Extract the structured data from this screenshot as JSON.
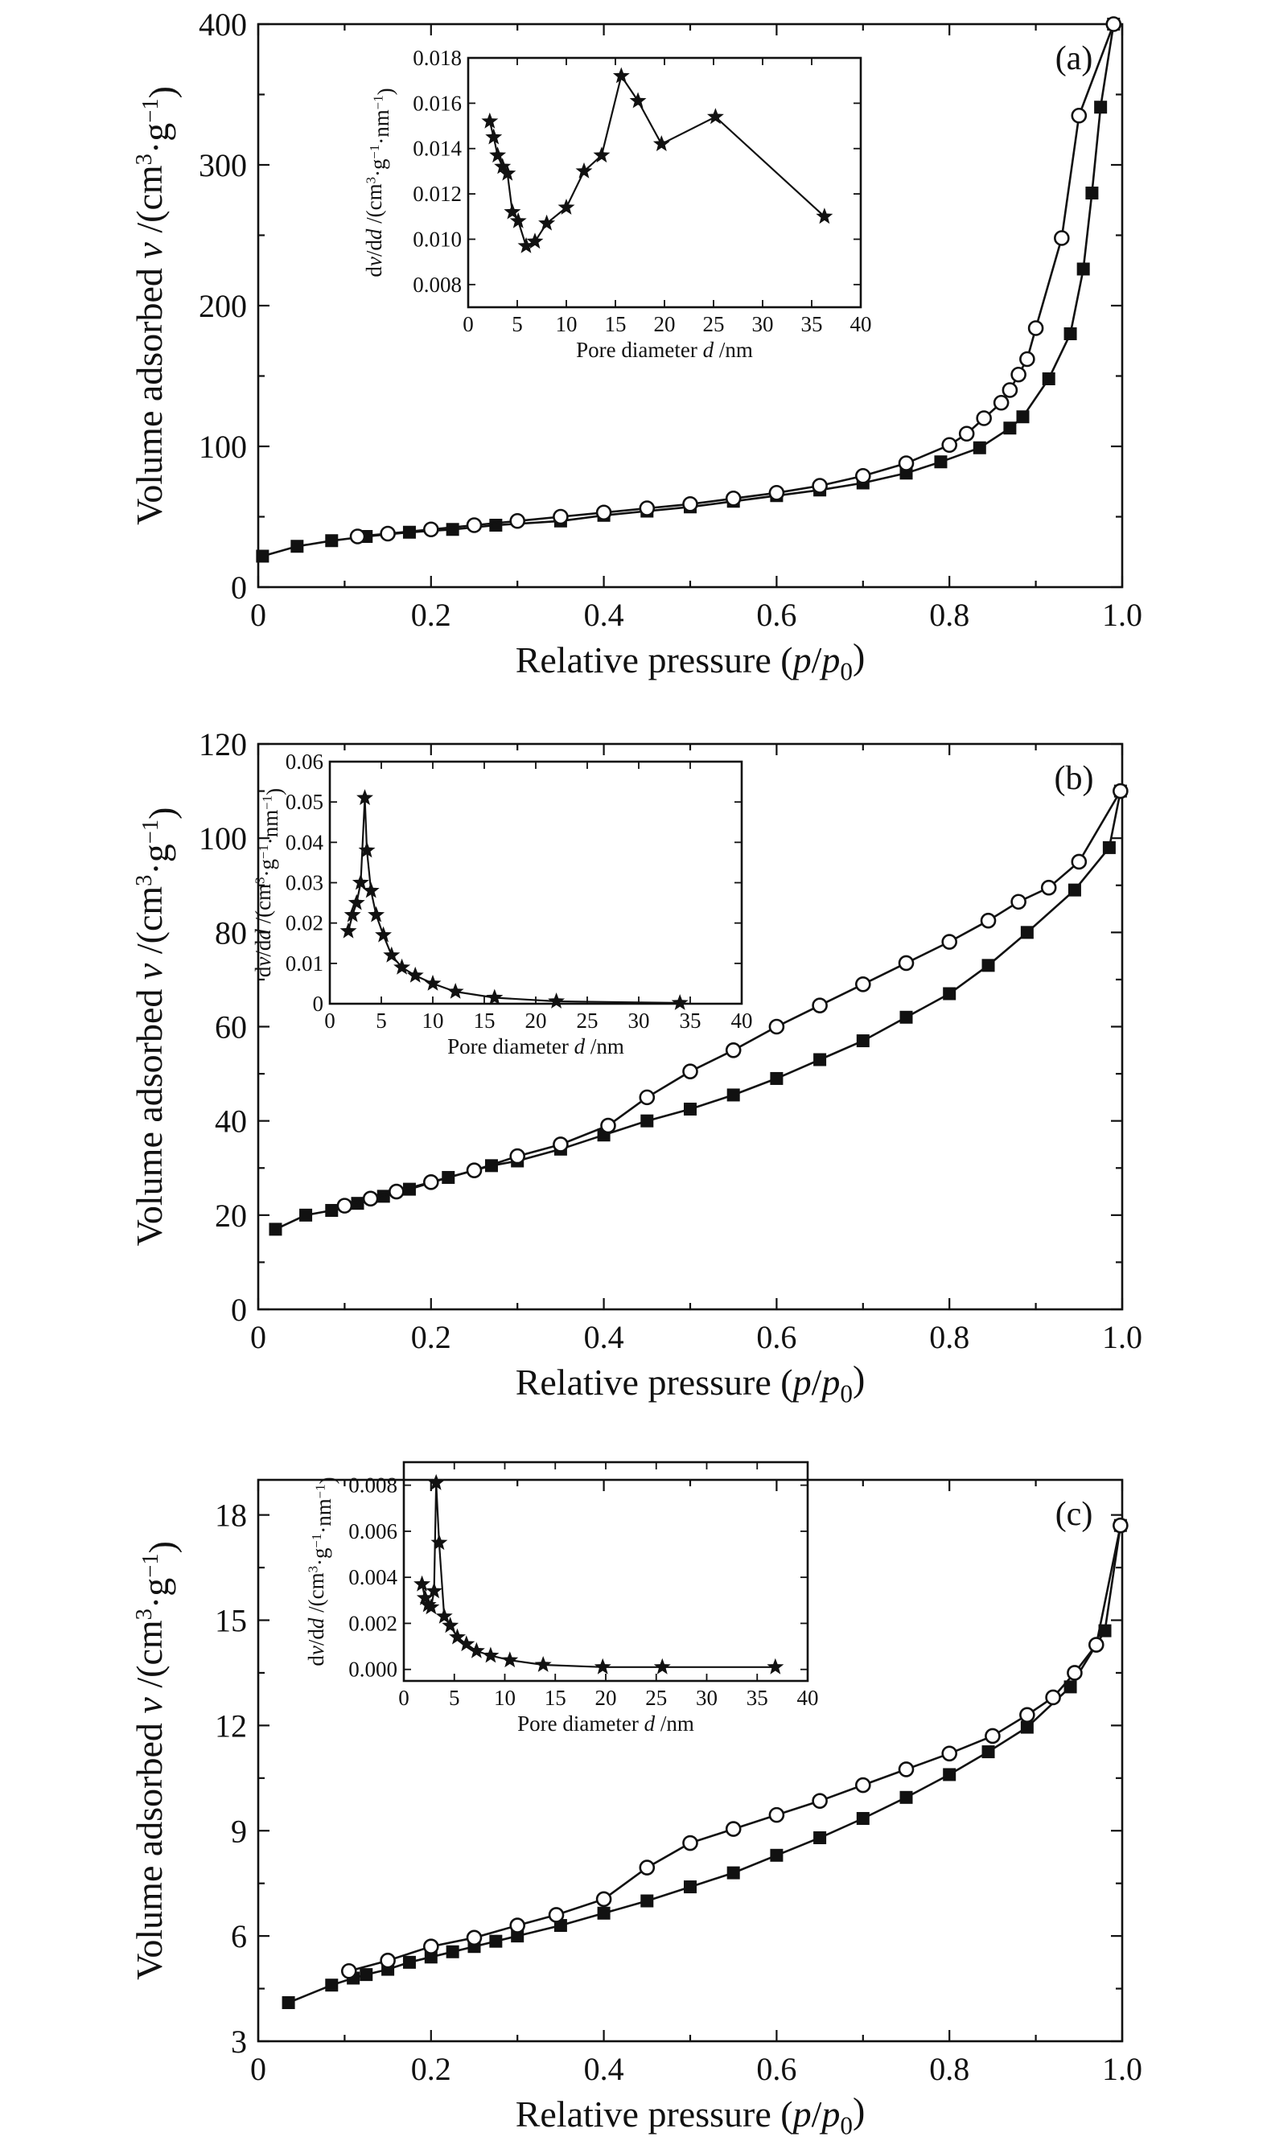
{
  "chart_data": [
    {
      "type": "line",
      "panel_label": "(a)",
      "xlabel": "Relative pressure (p/p0)",
      "ylabel": "Volume adsorbed   v /(cm³·g⁻¹)",
      "xlim": [
        0,
        1.0
      ],
      "ylim": [
        0,
        400
      ],
      "xticks": [
        "0",
        "0.2",
        "0.4",
        "0.6",
        "0.8",
        "1.0"
      ],
      "yticks": [
        "0",
        "100",
        "200",
        "300",
        "400"
      ],
      "series": [
        {
          "marker": "square-filled",
          "x": [
            0.005,
            0.045,
            0.085,
            0.125,
            0.175,
            0.225,
            0.275,
            0.35,
            0.4,
            0.45,
            0.5,
            0.55,
            0.6,
            0.65,
            0.7,
            0.75,
            0.79,
            0.835,
            0.87,
            0.885,
            0.915,
            0.94,
            0.955,
            0.965,
            0.975,
            0.99
          ],
          "y": [
            22,
            29,
            33,
            36,
            39,
            41,
            44,
            47,
            51,
            54,
            57,
            61,
            65,
            69,
            74,
            81,
            89,
            99,
            113,
            121,
            148,
            180,
            226,
            280,
            341,
            400
          ]
        },
        {
          "marker": "circle-open",
          "x": [
            0.115,
            0.15,
            0.2,
            0.25,
            0.3,
            0.35,
            0.4,
            0.45,
            0.5,
            0.55,
            0.6,
            0.65,
            0.7,
            0.75,
            0.8,
            0.82,
            0.84,
            0.86,
            0.87,
            0.88,
            0.89,
            0.9,
            0.93,
            0.95,
            0.99
          ],
          "y": [
            36,
            38,
            41,
            44,
            47,
            50,
            53,
            56,
            59,
            63,
            67,
            72,
            79,
            88,
            101,
            109,
            120,
            131,
            140,
            151,
            162,
            184,
            248,
            335,
            400
          ]
        }
      ],
      "inset": {
        "type": "line",
        "marker": "star",
        "xlabel": "Pore diameter   d /nm",
        "ylabel": "dv/dd /(cm³·g⁻¹·nm⁻¹)",
        "xlim": [
          0,
          40
        ],
        "ylim": [
          0.007,
          0.018
        ],
        "xticks": [
          "0",
          "5",
          "10",
          "15",
          "20",
          "25",
          "30",
          "35",
          "40"
        ],
        "yticks": [
          "0.008",
          "0.010",
          "0.012",
          "0.014",
          "0.016",
          "0.018"
        ],
        "x": [
          2.2,
          2.6,
          3.0,
          3.5,
          4.0,
          4.5,
          5.1,
          5.9,
          6.8,
          8.0,
          10.0,
          11.8,
          13.6,
          15.6,
          17.3,
          19.7,
          25.2,
          36.3
        ],
        "y": [
          0.0152,
          0.0145,
          0.0137,
          0.0132,
          0.0129,
          0.0112,
          0.0108,
          0.0097,
          0.0099,
          0.0107,
          0.0114,
          0.013,
          0.0137,
          0.0172,
          0.0161,
          0.0142,
          0.0154,
          0.011
        ]
      }
    },
    {
      "type": "line",
      "panel_label": "(b)",
      "xlabel": "Relative pressure (p/p0)",
      "ylabel": "Volume adsorbed   v /(cm³·g⁻¹)",
      "xlim": [
        0,
        1.0
      ],
      "ylim": [
        0,
        120
      ],
      "xticks": [
        "0",
        "0.2",
        "0.4",
        "0.6",
        "0.8",
        "1.0"
      ],
      "yticks": [
        "0",
        "20",
        "40",
        "60",
        "80",
        "100",
        "120"
      ],
      "series": [
        {
          "marker": "square-filled",
          "x": [
            0.02,
            0.055,
            0.085,
            0.115,
            0.145,
            0.175,
            0.22,
            0.27,
            0.3,
            0.35,
            0.4,
            0.45,
            0.5,
            0.55,
            0.6,
            0.65,
            0.7,
            0.75,
            0.8,
            0.845,
            0.89,
            0.945,
            0.985,
            0.998
          ],
          "y": [
            17,
            20,
            21,
            22.5,
            24,
            25.5,
            28,
            30.5,
            31.5,
            34,
            37,
            40,
            42.5,
            45.5,
            49,
            53,
            57,
            62,
            67,
            73,
            80,
            89,
            98,
            110
          ]
        },
        {
          "marker": "circle-open",
          "x": [
            0.1,
            0.13,
            0.16,
            0.2,
            0.25,
            0.3,
            0.35,
            0.405,
            0.45,
            0.5,
            0.55,
            0.6,
            0.65,
            0.7,
            0.75,
            0.8,
            0.845,
            0.88,
            0.915,
            0.95,
            0.998
          ],
          "y": [
            22,
            23.5,
            25,
            27,
            29.5,
            32.5,
            35,
            39,
            45,
            50.5,
            55,
            60,
            64.5,
            69,
            73.5,
            78,
            82.5,
            86.5,
            89.5,
            95,
            110
          ]
        }
      ],
      "inset": {
        "type": "line",
        "marker": "star",
        "xlabel": "Pore diameter   d /nm",
        "ylabel": "dv/dd /(cm³·g⁻¹·nm⁻¹)",
        "xlim": [
          0,
          40
        ],
        "ylim": [
          0,
          0.06
        ],
        "xticks": [
          "0",
          "5",
          "10",
          "15",
          "20",
          "25",
          "30",
          "35",
          "40"
        ],
        "yticks": [
          "0",
          "0.01",
          "0.02",
          "0.03",
          "0.04",
          "0.05",
          "0.06"
        ],
        "x": [
          1.8,
          2.2,
          2.6,
          3.0,
          3.4,
          3.6,
          4.0,
          4.5,
          5.2,
          6.0,
          7.0,
          8.3,
          10.0,
          12.2,
          16.0,
          22.0,
          34.0
        ],
        "y": [
          0.018,
          0.022,
          0.025,
          0.03,
          0.051,
          0.038,
          0.028,
          0.022,
          0.017,
          0.012,
          0.009,
          0.007,
          0.005,
          0.003,
          0.0015,
          0.0006,
          0.0002
        ]
      }
    },
    {
      "type": "line",
      "panel_label": "(c)",
      "xlabel": "Relative pressure (p/p0)",
      "ylabel": "Volume adsorbed   v /(cm³·g⁻¹)",
      "xlim": [
        0,
        1.0
      ],
      "ylim": [
        3,
        19
      ],
      "xticks": [
        "0",
        "0.2",
        "0.4",
        "0.6",
        "0.8",
        "1.0"
      ],
      "yticks": [
        "3",
        "6",
        "9",
        "12",
        "15",
        "18"
      ],
      "series": [
        {
          "marker": "square-filled",
          "x": [
            0.035,
            0.085,
            0.11,
            0.125,
            0.15,
            0.175,
            0.2,
            0.225,
            0.25,
            0.275,
            0.3,
            0.35,
            0.4,
            0.45,
            0.5,
            0.55,
            0.6,
            0.65,
            0.7,
            0.75,
            0.8,
            0.845,
            0.89,
            0.94,
            0.98,
            0.998
          ],
          "y": [
            4.1,
            4.6,
            4.8,
            4.9,
            5.05,
            5.25,
            5.4,
            5.55,
            5.7,
            5.85,
            6.0,
            6.3,
            6.65,
            7.0,
            7.4,
            7.8,
            8.3,
            8.8,
            9.35,
            9.95,
            10.6,
            11.25,
            11.95,
            13.1,
            14.7,
            17.7
          ]
        },
        {
          "marker": "circle-open",
          "x": [
            0.105,
            0.15,
            0.2,
            0.25,
            0.3,
            0.345,
            0.4,
            0.45,
            0.5,
            0.55,
            0.6,
            0.65,
            0.7,
            0.75,
            0.8,
            0.85,
            0.89,
            0.92,
            0.945,
            0.97,
            0.998
          ],
          "y": [
            5.0,
            5.3,
            5.7,
            5.95,
            6.3,
            6.6,
            7.05,
            7.95,
            8.65,
            9.05,
            9.45,
            9.85,
            10.3,
            10.75,
            11.2,
            11.7,
            12.3,
            12.8,
            13.5,
            14.3,
            17.7
          ]
        }
      ],
      "inset": {
        "type": "line",
        "marker": "star",
        "xlabel": "Pore diameter   d /nm",
        "ylabel": "dv/dd /(cm³·g⁻¹·nm⁻¹)",
        "xlim": [
          0,
          40
        ],
        "ylim": [
          -0.0005,
          0.009
        ],
        "xticks": [
          "0",
          "5",
          "10",
          "15",
          "20",
          "25",
          "30",
          "35",
          "40"
        ],
        "yticks": [
          "0.000",
          "0.002",
          "0.004",
          "0.006",
          "0.008"
        ],
        "x": [
          1.8,
          2.1,
          2.4,
          2.7,
          3.0,
          3.2,
          3.5,
          4.0,
          4.6,
          5.3,
          6.2,
          7.2,
          8.6,
          10.5,
          13.8,
          19.7,
          25.6,
          36.8
        ],
        "y": [
          0.0037,
          0.0031,
          0.0028,
          0.0027,
          0.0034,
          0.0081,
          0.0055,
          0.0023,
          0.0019,
          0.0014,
          0.0011,
          0.0008,
          0.0006,
          0.0004,
          0.0002,
          0.0001,
          0.0001,
          0.0001
        ]
      }
    }
  ]
}
